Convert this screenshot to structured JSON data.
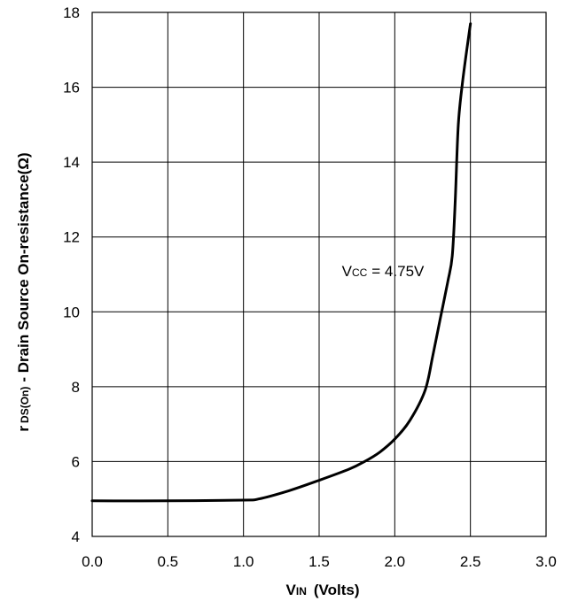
{
  "chart_data": {
    "type": "line",
    "x": [
      0.0,
      0.5,
      1.0,
      1.1,
      1.3,
      1.5,
      1.7,
      1.8,
      1.9,
      2.0,
      2.1,
      2.2,
      2.25,
      2.3,
      2.35,
      2.38,
      2.4,
      2.42,
      2.45,
      2.5
    ],
    "y": [
      4.95,
      4.95,
      4.97,
      5.0,
      5.22,
      5.5,
      5.8,
      6.0,
      6.25,
      6.6,
      7.1,
      7.9,
      8.8,
      9.8,
      10.8,
      11.5,
      13.0,
      15.0,
      16.2,
      17.7
    ],
    "xlim": [
      0.0,
      3.0
    ],
    "ylim": [
      4,
      18
    ],
    "xticks": [
      "0.0",
      "0.5",
      "1.0",
      "1.5",
      "2.0",
      "2.5",
      "3.0"
    ],
    "yticks": [
      "4",
      "6",
      "8",
      "10",
      "12",
      "14",
      "16",
      "18"
    ],
    "xlabel": {
      "main": "V",
      "sub": "IN",
      "rest": "(Volts)"
    },
    "ylabel": {
      "prefix": "r",
      "sub": "DS(On)",
      "rest": "- Drain Source On-resistance(Ω)"
    },
    "annotation": {
      "main": "V",
      "sub": "CC",
      "rest": "= 4.75V",
      "x": 1.65,
      "y": 10.95
    },
    "grid": true,
    "line_color": "#000000"
  }
}
